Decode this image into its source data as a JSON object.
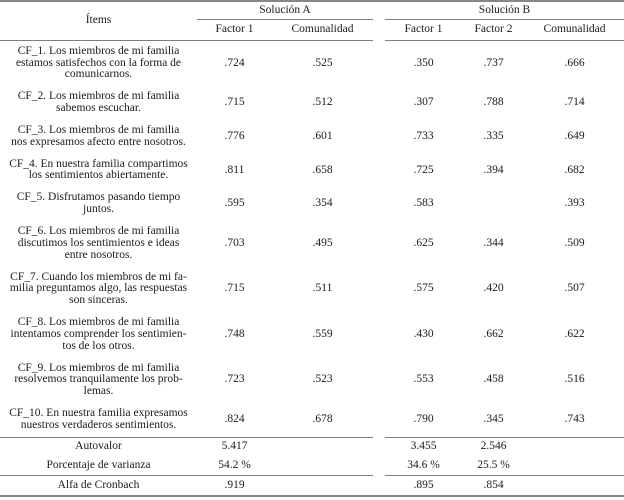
{
  "table": {
    "header": {
      "items_label": "Ítems",
      "solution_a_label": "Solución A",
      "solution_b_label": "Solución B",
      "a_factor1": "Factor 1",
      "a_comunalidad": "Comunalidad",
      "b_factor1": "Factor 1",
      "b_factor2": "Factor 2",
      "b_comunalidad": "Comunalidad"
    },
    "rows": [
      {
        "item": "CF_1. Los miembros de mi familia\nestamos satisfechos con la forma de\ncomunicarnos.",
        "a_factor1": ".724",
        "a_comunalidad": ".525",
        "b_factor1": ".350",
        "b_factor2": ".737",
        "b_comunalidad": ".666"
      },
      {
        "item": "CF_2. Los miembros de mi familia\nsabemos escuchar.",
        "a_factor1": ".715",
        "a_comunalidad": ".512",
        "b_factor1": ".307",
        "b_factor2": ".788",
        "b_comunalidad": ".714"
      },
      {
        "item": "CF_3. Los miembros de mi familia\nnos expresamos afecto entre nosotros.",
        "a_factor1": ".776",
        "a_comunalidad": ".601",
        "b_factor1": ".733",
        "b_factor2": ".335",
        "b_comunalidad": ".649"
      },
      {
        "item": "CF_4. En nuestra familia compartimos\nlos sentimientos abiertamente.",
        "a_factor1": ".811",
        "a_comunalidad": ".658",
        "b_factor1": ".725",
        "b_factor2": ".394",
        "b_comunalidad": ".682"
      },
      {
        "item": "CF_5. Disfrutamos pasando tiempo\njuntos.",
        "a_factor1": ".595",
        "a_comunalidad": ".354",
        "b_factor1": ".583",
        "b_factor2": "",
        "b_comunalidad": ".393"
      },
      {
        "item": "CF_6. Los miembros de mi familia\ndiscutimos los sentimientos e ideas\nentre nosotros.",
        "a_factor1": ".703",
        "a_comunalidad": ".495",
        "b_factor1": ".625",
        "b_factor2": ".344",
        "b_comunalidad": ".509"
      },
      {
        "item": "CF_7. Cuando los miembros de mi fa-\nmilia preguntamos algo, las respuestas\nson sinceras.",
        "a_factor1": ".715",
        "a_comunalidad": ".511",
        "b_factor1": ".575",
        "b_factor2": ".420",
        "b_comunalidad": ".507"
      },
      {
        "item": "CF_8. Los miembros de mi familia\nintentamos comprender los sentimien-\ntos de los otros.",
        "a_factor1": ".748",
        "a_comunalidad": ".559",
        "b_factor1": ".430",
        "b_factor2": ".662",
        "b_comunalidad": ".622"
      },
      {
        "item": "CF_9. Los miembros de mi familia\nresolvemos tranquilamente los prob-\nlemas.",
        "a_factor1": ".723",
        "a_comunalidad": ".523",
        "b_factor1": ".553",
        "b_factor2": ".458",
        "b_comunalidad": ".516"
      },
      {
        "item": "CF_10. En nuestra familia expresamos\nnuestros verdaderos sentimientos.",
        "a_factor1": ".824",
        "a_comunalidad": ".678",
        "b_factor1": ".790",
        "b_factor2": ".345",
        "b_comunalidad": ".743"
      }
    ],
    "footer": {
      "autovalor": {
        "label": "Autovalor",
        "a_factor1": "5.417",
        "b_factor1": "3.455",
        "b_factor2": "2.546"
      },
      "varianza": {
        "label": "Porcentaje de varianza",
        "a_factor1": "54.2 %",
        "b_factor1": "34.6 %",
        "b_factor2": "25.5 %"
      },
      "alfa": {
        "label": "Alfa de Cronbach",
        "a_factor1": ".919",
        "b_factor1": ".895",
        "b_factor2": ".854"
      }
    },
    "colors": {
      "rule": "#7d7d7d",
      "text": "#1b1b1b",
      "background": "#ffffff"
    }
  }
}
